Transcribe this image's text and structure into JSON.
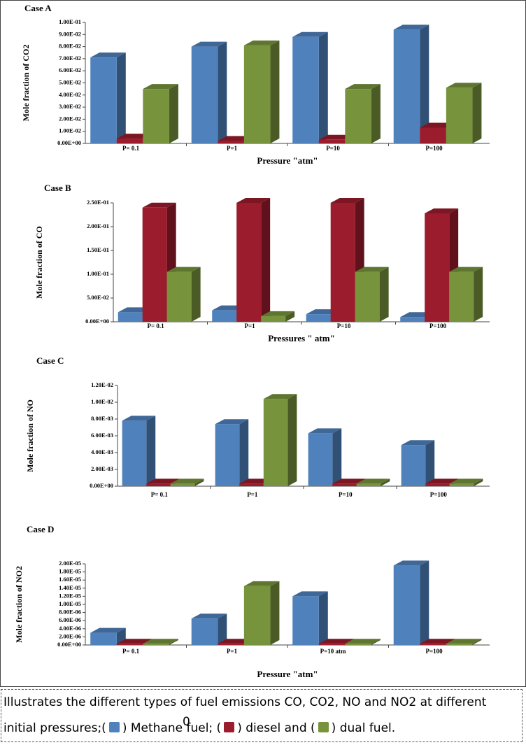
{
  "chart_data": [
    {
      "type": "bar3d",
      "title": "Case A",
      "y_label": "Mole fraction of CO2",
      "x_label": "Pressure \"atm\"",
      "categories": [
        "P= 0.1",
        "P=1",
        "P=10",
        "P=100"
      ],
      "series": [
        {
          "color": "#4f81bd",
          "values": [
            0.071,
            0.08,
            0.088,
            0.094
          ]
        },
        {
          "color": "#9b1c2c",
          "values": [
            0.004,
            0.002,
            0.003,
            0.013
          ]
        },
        {
          "color": "#77933c",
          "values": [
            0.045,
            0.081,
            0.045,
            0.046
          ]
        }
      ],
      "ylim": [
        0,
        0.1
      ],
      "yticks": [
        {
          "value": 0,
          "label": "0.00E+00"
        },
        {
          "value": 0.01,
          "label": "1.00E-02"
        },
        {
          "value": 0.02,
          "label": "2.00E-02"
        },
        {
          "value": 0.03,
          "label": "3.00E-02"
        },
        {
          "value": 0.04,
          "label": "4.00E-02"
        },
        {
          "value": 0.05,
          "label": "5.00E-02"
        },
        {
          "value": 0.06,
          "label": "6.00E-02"
        },
        {
          "value": 0.07,
          "label": "7.00E-02"
        },
        {
          "value": 0.08,
          "label": "8.00E-02"
        },
        {
          "value": 0.09,
          "label": "9.00E-02"
        },
        {
          "value": 0.1,
          "label": "1.00E-01"
        }
      ]
    },
    {
      "type": "bar3d",
      "title": "Case B",
      "y_label": "Mole fraction of CO",
      "x_label": "Pressures \" atm\"",
      "categories": [
        "P= 0.1",
        "P=1",
        "P=10",
        "P=100"
      ],
      "series": [
        {
          "color": "#4f81bd",
          "values": [
            0.02,
            0.024,
            0.016,
            0.01
          ]
        },
        {
          "color": "#9b1c2c",
          "values": [
            0.24,
            0.25,
            0.25,
            0.228
          ]
        },
        {
          "color": "#77933c",
          "values": [
            0.105,
            0.012,
            0.105,
            0.105
          ]
        }
      ],
      "ylim": [
        0,
        0.25
      ],
      "yticks": [
        {
          "value": 0,
          "label": "0.00E+00"
        },
        {
          "value": 0.05,
          "label": "5.00E-02"
        },
        {
          "value": 0.1,
          "label": "1.00E-01"
        },
        {
          "value": 0.15,
          "label": "1.50E-01"
        },
        {
          "value": 0.2,
          "label": "2.00E-01"
        },
        {
          "value": 0.25,
          "label": "2.50E-01"
        }
      ]
    },
    {
      "type": "bar3d",
      "title": "Case C",
      "y_label": "Mole fraction of NO",
      "categories": [
        "P= 0.1",
        "P=1",
        "P=10",
        "P=100"
      ],
      "series": [
        {
          "color": "#4f81bd",
          "values": [
            0.0078,
            0.0074,
            0.0063,
            0.0049
          ]
        },
        {
          "color": "#9b1c2c",
          "values": [
            0.0003,
            0.0003,
            0.0003,
            0.0003
          ]
        },
        {
          "color": "#77933c",
          "values": [
            0.0003,
            0.0104,
            0.0003,
            0.0003
          ]
        }
      ],
      "ylim": [
        0,
        0.012
      ],
      "yticks": [
        {
          "value": 0,
          "label": "0.00E+00"
        },
        {
          "value": 0.002,
          "label": "2.00E-03"
        },
        {
          "value": 0.004,
          "label": "4.00E-03"
        },
        {
          "value": 0.006,
          "label": "6.00E-03"
        },
        {
          "value": 0.008,
          "label": "8.00E-03"
        },
        {
          "value": 0.01,
          "label": "1.00E-02"
        },
        {
          "value": 0.012,
          "label": "1.20E-02"
        }
      ]
    },
    {
      "type": "bar3d",
      "title": "Case D",
      "y_label": "Mole fraction of NO2",
      "x_label": "Pressure \"atm\"",
      "categories": [
        "P= 0.1",
        "P=1",
        "P=10 atm",
        "P=100"
      ],
      "series": [
        {
          "color": "#4f81bd",
          "values": [
            3e-06,
            6.5e-06,
            1.2e-05,
            1.96e-05
          ]
        },
        {
          "color": "#9b1c2c",
          "values": [
            3e-07,
            3e-07,
            3e-07,
            3e-07
          ]
        },
        {
          "color": "#77933c",
          "values": [
            3e-07,
            1.45e-05,
            3e-07,
            3e-07
          ]
        }
      ],
      "ylim": [
        0,
        2e-05
      ],
      "yticks": [
        {
          "value": 0,
          "label": "0.00E+00"
        },
        {
          "value": 2e-06,
          "label": "2.00E-06"
        },
        {
          "value": 4e-06,
          "label": "4.00E-06"
        },
        {
          "value": 6e-06,
          "label": "6.00E-06"
        },
        {
          "value": 8e-06,
          "label": "8.00E-06"
        },
        {
          "value": 1e-05,
          "label": "1.00E-05"
        },
        {
          "value": 1.2e-05,
          "label": "1.20E-05"
        },
        {
          "value": 1.4e-05,
          "label": "1.40E-05"
        },
        {
          "value": 1.6e-05,
          "label": "1.60E-05"
        },
        {
          "value": 1.8e-05,
          "label": "1.80E-05"
        },
        {
          "value": 2e-05,
          "label": "2.00E-05"
        }
      ]
    }
  ],
  "caption": {
    "parts": [
      "Illustrates the different types of fuel emissions CO, CO2, NO and NO2 at different initial pressures;(",
      ")  Methane fuel; (",
      ") diesel and (",
      ") dual fuel."
    ],
    "stray_mark": "0"
  }
}
